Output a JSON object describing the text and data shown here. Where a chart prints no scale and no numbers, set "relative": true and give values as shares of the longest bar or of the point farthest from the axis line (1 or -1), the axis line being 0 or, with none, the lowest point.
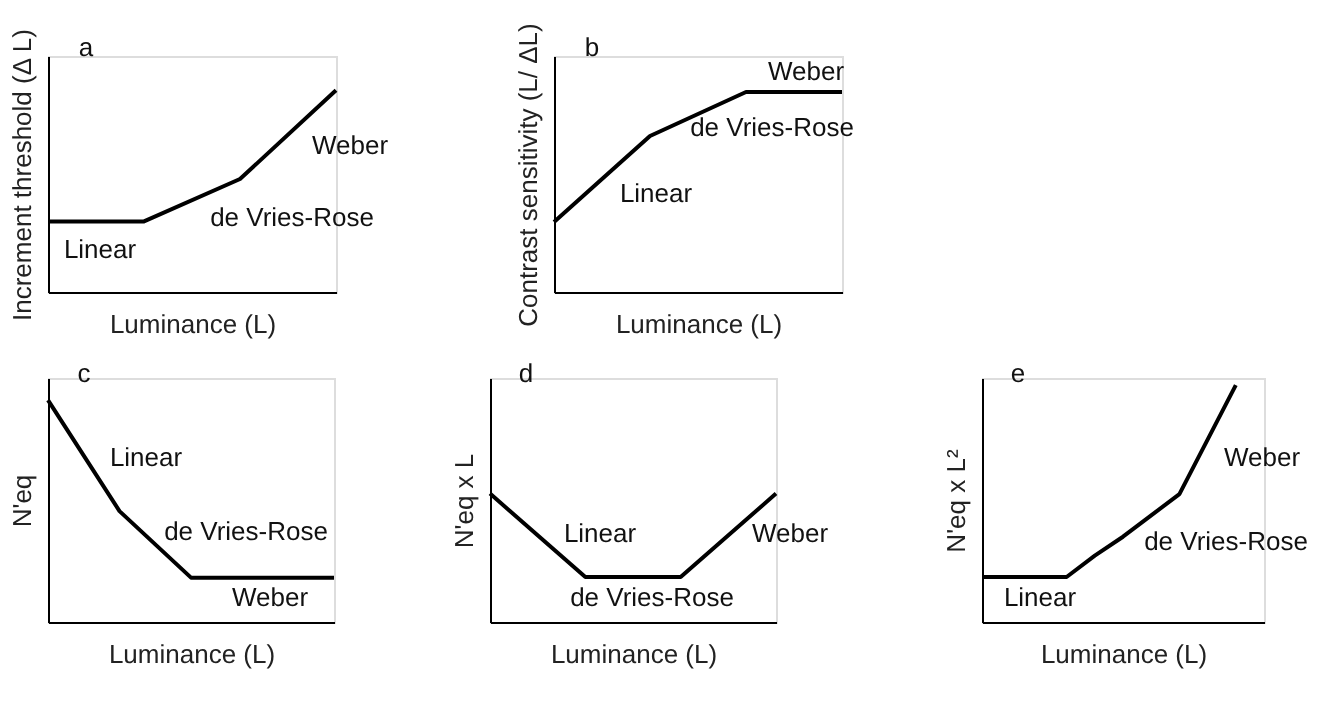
{
  "chart_data": [
    {
      "type": "line",
      "title": "a",
      "xlabel": "Luminance (L)",
      "ylabel": "Increment threshold (Δ L)",
      "relative": true,
      "tick_labels": false,
      "categories": [
        null,
        null,
        null,
        null
      ],
      "series": [
        {
          "color": "#000000",
          "values": [
            0.35,
            0.35,
            0.56,
            1
          ]
        }
      ],
      "annotations": [
        "Weber",
        "de Vries-Rose",
        "Linear"
      ]
    },
    {
      "type": "line",
      "title": "b",
      "xlabel": "Luminance (L)",
      "ylabel": "Contrast sensitivity (L/ ΔL)",
      "relative": true,
      "tick_labels": false,
      "categories": [
        null,
        null,
        null,
        null
      ],
      "series": [
        {
          "color": "#000000",
          "values": [
            0.35,
            0.78,
            1,
            1
          ]
        }
      ],
      "annotations": [
        "Weber",
        "de Vries-Rose",
        "Linear"
      ]
    },
    {
      "type": "line",
      "title": "c",
      "xlabel": "Luminance (L)",
      "ylabel": "N'eq",
      "relative": true,
      "tick_labels": false,
      "categories": [
        null,
        null,
        null,
        null,
        null,
        null,
        null,
        null,
        null
      ],
      "series": [
        {
          "color": "#000000",
          "values": [
            1,
            0.75,
            0.5,
            0.35,
            0.2,
            0.2,
            0.2,
            0.2,
            0.2
          ]
        }
      ],
      "annotations": [
        "Linear",
        "de Vries-Rose",
        "Weber"
      ]
    },
    {
      "type": "line",
      "title": "d",
      "xlabel": "Luminance (L)",
      "ylabel": "N'eq x L",
      "relative": true,
      "tick_labels": false,
      "categories": [
        null,
        null,
        null,
        null
      ],
      "series": [
        {
          "color": "#000000",
          "values": [
            1,
            0.35,
            0.35,
            1
          ]
        }
      ],
      "annotations": [
        "Linear",
        "Weber",
        "de Vries-Rose"
      ]
    },
    {
      "type": "line",
      "title": "e",
      "xlabel": "Luminance (L)",
      "ylabel": "N'eq x L²",
      "relative": true,
      "tick_labels": false,
      "categories": [
        null,
        null,
        null,
        null,
        null,
        null,
        null,
        null,
        null,
        null,
        null
      ],
      "series": [
        {
          "color": "#000000",
          "values": [
            0.19,
            0.19,
            0.19,
            0.19,
            0.28,
            0.36,
            0.45,
            0.54,
            0.77,
            1,
            null
          ]
        }
      ],
      "annotations": [
        "Weber",
        "de Vries-Rose",
        "Linear"
      ]
    }
  ]
}
